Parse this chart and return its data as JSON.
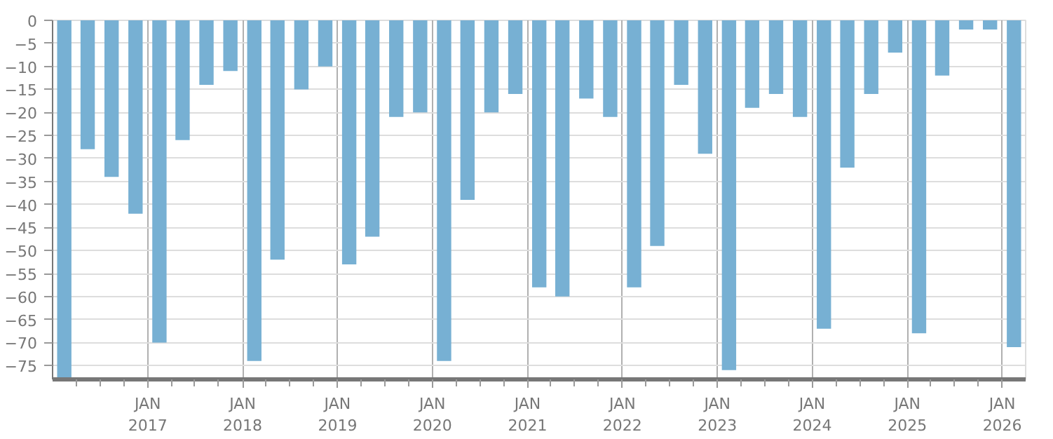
{
  "chart_data": {
    "type": "bar",
    "x": [
      "2016-02-15",
      "2016-05-15",
      "2016-08-15",
      "2016-11-15",
      "2017-02-15",
      "2017-05-15",
      "2017-08-15",
      "2017-11-15",
      "2018-02-15",
      "2018-05-15",
      "2018-08-15",
      "2018-11-15",
      "2019-02-15",
      "2019-05-15",
      "2019-08-15",
      "2019-11-15",
      "2020-02-15",
      "2020-05-15",
      "2020-08-15",
      "2020-11-15",
      "2021-02-15",
      "2021-05-15",
      "2021-08-15",
      "2021-11-15",
      "2022-02-15",
      "2022-05-15",
      "2022-08-15",
      "2022-11-15",
      "2023-02-15",
      "2023-05-15",
      "2023-08-15",
      "2023-11-15",
      "2024-02-15",
      "2024-05-15",
      "2024-08-15",
      "2024-11-15",
      "2025-02-15",
      "2025-05-15",
      "2025-08-15",
      "2025-11-15",
      "2026-02-15"
    ],
    "values": [
      -78,
      -28,
      -34,
      -42,
      -70,
      -26,
      -14,
      -11,
      -74,
      -52,
      -15,
      -10,
      -53,
      -47,
      -21,
      -20,
      -74,
      -39,
      -20,
      -16,
      -58,
      -60,
      -17,
      -21,
      -58,
      -49,
      -14,
      -29,
      -76,
      -19,
      -16,
      -21,
      -67,
      -32,
      -16,
      -7,
      -68,
      -12,
      -2,
      -2,
      -71
    ],
    "color": "#77b0d3",
    "ylim": [
      -78,
      0
    ],
    "yticks": [
      -75,
      -70,
      -65,
      -60,
      -55,
      -50,
      -45,
      -40,
      -35,
      -30,
      -25,
      -20,
      -15,
      -10,
      -5,
      0
    ],
    "xlim": [
      "2016-01-01",
      "2026-04-01"
    ],
    "xticks": [
      {
        "value": "2016-04-01",
        "label": null
      },
      {
        "value": "2016-07-01",
        "label": null
      },
      {
        "value": "2016-10-01",
        "label": null
      },
      {
        "value": "2017-01-01",
        "label": "JAN\n2017"
      },
      {
        "value": "2017-04-01",
        "label": null
      },
      {
        "value": "2017-07-01",
        "label": null
      },
      {
        "value": "2017-10-01",
        "label": null
      },
      {
        "value": "2018-01-01",
        "label": "JAN\n2018"
      },
      {
        "value": "2018-04-01",
        "label": null
      },
      {
        "value": "2018-07-01",
        "label": null
      },
      {
        "value": "2018-10-01",
        "label": null
      },
      {
        "value": "2019-01-01",
        "label": "JAN\n2019"
      },
      {
        "value": "2019-04-01",
        "label": null
      },
      {
        "value": "2019-07-01",
        "label": null
      },
      {
        "value": "2019-10-01",
        "label": null
      },
      {
        "value": "2020-01-01",
        "label": "JAN\n2020"
      },
      {
        "value": "2020-04-01",
        "label": null
      },
      {
        "value": "2020-07-01",
        "label": null
      },
      {
        "value": "2020-10-01",
        "label": null
      },
      {
        "value": "2021-01-01",
        "label": "JAN\n2021"
      },
      {
        "value": "2021-04-01",
        "label": null
      },
      {
        "value": "2021-07-01",
        "label": null
      },
      {
        "value": "2021-10-01",
        "label": null
      },
      {
        "value": "2022-01-01",
        "label": "JAN\n2022"
      },
      {
        "value": "2022-04-01",
        "label": null
      },
      {
        "value": "2022-07-01",
        "label": null
      },
      {
        "value": "2022-10-01",
        "label": null
      },
      {
        "value": "2023-01-01",
        "label": "JAN\n2023"
      },
      {
        "value": "2023-04-01",
        "label": null
      },
      {
        "value": "2023-07-01",
        "label": null
      },
      {
        "value": "2023-10-01",
        "label": null
      },
      {
        "value": "2024-01-01",
        "label": "JAN\n2024"
      },
      {
        "value": "2024-04-01",
        "label": null
      },
      {
        "value": "2024-07-01",
        "label": null
      },
      {
        "value": "2024-10-01",
        "label": null
      },
      {
        "value": "2025-01-01",
        "label": "JAN\n2025"
      },
      {
        "value": "2025-04-01",
        "label": null
      },
      {
        "value": "2025-07-01",
        "label": null
      },
      {
        "value": "2025-10-01",
        "label": null
      },
      {
        "value": "2026-01-01",
        "label": "JAN\n2026"
      }
    ],
    "grid": true
  }
}
